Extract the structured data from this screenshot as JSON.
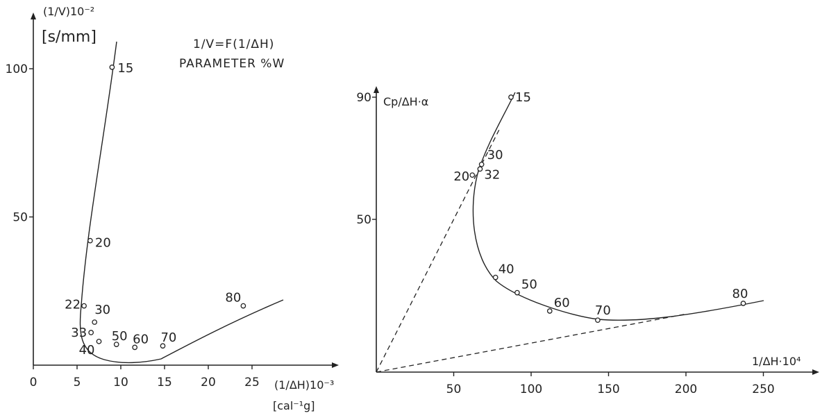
{
  "chart_data": [
    {
      "type": "line",
      "title": "1/V=F(1/ΔH)",
      "subtitle": "PARAMETER %W",
      "ylabel_top": "(1/V)10⁻²",
      "ylabel_unit": "[s/mm]",
      "xlabel": "(1/ΔH)10⁻³",
      "xlabel_unit": "[cal⁻¹g]",
      "xlim": [
        0,
        29
      ],
      "ylim": [
        0,
        112
      ],
      "x_ticks": [
        0,
        5,
        10,
        15,
        20,
        25
      ],
      "y_ticks": [
        50,
        100
      ],
      "grid": false,
      "legend": "none",
      "series": [
        {
          "values": [
            {
              "label": "15",
              "x": 9.0,
              "y": 100.5
            },
            {
              "label": "20",
              "x": 6.5,
              "y": 42.0
            },
            {
              "label": "22",
              "x": 5.8,
              "y": 20.0
            },
            {
              "label": "30",
              "x": 7.0,
              "y": 14.5
            },
            {
              "label": "33",
              "x": 6.6,
              "y": 11.0
            },
            {
              "label": "40",
              "x": 7.5,
              "y": 8.0
            },
            {
              "label": "50",
              "x": 9.5,
              "y": 7.0
            },
            {
              "label": "60",
              "x": 11.6,
              "y": 6.0
            },
            {
              "label": "70",
              "x": 14.8,
              "y": 6.5
            },
            {
              "label": "80",
              "x": 24.0,
              "y": 20.0
            }
          ]
        }
      ]
    },
    {
      "type": "line",
      "ylabel": "Cp/ΔH·α",
      "xlabel": "1/ΔH·10⁴",
      "xlim": [
        0,
        290
      ],
      "ylim": [
        0,
        95
      ],
      "x_ticks": [
        50,
        100,
        150,
        200,
        250
      ],
      "y_ticks": [
        50,
        90
      ],
      "grid": false,
      "legend": "none",
      "series": [
        {
          "values": [
            {
              "label": "15",
              "x": 87,
              "y": 90.0
            },
            {
              "label": "30",
              "x": 68,
              "y": 68.0
            },
            {
              "label": "32",
              "x": 67,
              "y": 66.5
            },
            {
              "label": "20",
              "x": 62,
              "y": 64.5
            },
            {
              "label": "40",
              "x": 77,
              "y": 31.0
            },
            {
              "label": "50",
              "x": 91,
              "y": 26.0
            },
            {
              "label": "60",
              "x": 112,
              "y": 20.0
            },
            {
              "label": "70",
              "x": 143,
              "y": 17.0
            },
            {
              "label": "80",
              "x": 237,
              "y": 22.5
            }
          ]
        }
      ],
      "reference_lines": [
        {
          "style": "dashed",
          "from": [
            0,
            0
          ],
          "to": [
            80,
            80
          ]
        },
        {
          "style": "dashed",
          "from": [
            0,
            0
          ],
          "to": [
            200,
            19
          ]
        }
      ]
    }
  ]
}
